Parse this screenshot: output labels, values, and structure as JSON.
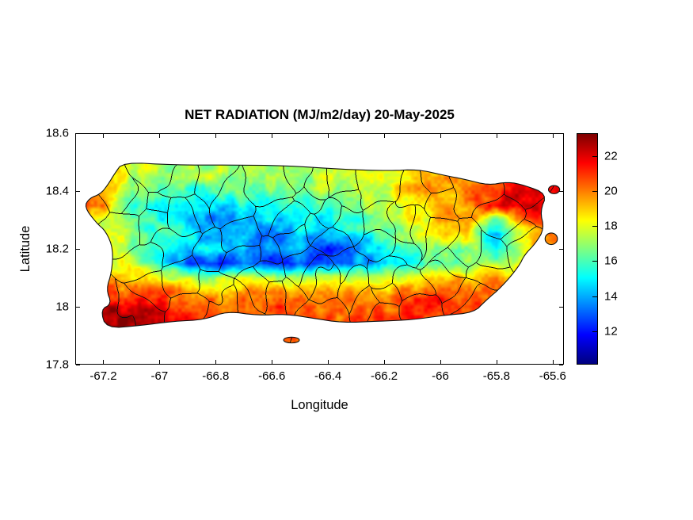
{
  "chart_data": {
    "type": "heatmap",
    "title": "NET RADIATION (MJ/m2/day) 20-May-2025",
    "units": "MJ/m2/day",
    "date": "20-May-2025",
    "region": "Puerto Rico",
    "xlabel": "Longitude",
    "ylabel": "Latitude",
    "xlim": [
      -67.3,
      -65.56
    ],
    "ylim": [
      17.8,
      18.6
    ],
    "x_ticks": [
      -67.2,
      -67,
      -66.8,
      -66.6,
      -66.4,
      -66.2,
      -66,
      -65.8,
      -65.6
    ],
    "y_ticks": [
      17.8,
      18,
      18.2,
      18.4,
      18.6
    ],
    "colormap": "jet",
    "clim": [
      10.1,
      23.3
    ],
    "colorbar_ticks": [
      12,
      14,
      16,
      18,
      20,
      22
    ],
    "overlay": "municipality boundaries (thin black lines)",
    "grid": {
      "lon": [
        -67.3,
        -67.2,
        -67.1,
        -67.0,
        -66.9,
        -66.8,
        -66.7,
        -66.6,
        -66.5,
        -66.4,
        -66.3,
        -66.2,
        -66.1,
        -66.0,
        -65.9,
        -65.8,
        -65.7,
        -65.6,
        -65.5
      ],
      "lat": [
        17.95,
        18.0,
        18.05,
        18.1,
        18.15,
        18.2,
        18.25,
        18.3,
        18.35,
        18.4,
        18.45,
        18.5
      ],
      "values": [
        [
          23,
          23,
          22.5,
          22.5,
          22,
          21,
          21,
          21,
          20.5,
          20.5,
          20.5,
          21,
          21.5,
          21,
          20.5,
          20,
          20,
          20,
          20
        ],
        [
          22.5,
          22.5,
          22,
          21.5,
          21,
          20.5,
          20.5,
          21,
          20.5,
          20,
          20,
          20.5,
          21,
          21.5,
          21,
          20.5,
          20,
          20,
          20
        ],
        [
          21,
          21,
          20.5,
          20.5,
          20,
          19.5,
          19.5,
          20,
          19.5,
          19.5,
          19.5,
          19.5,
          20,
          20.5,
          20.5,
          20,
          19.5,
          19.5,
          19.5
        ],
        [
          19.5,
          19.5,
          19,
          18.5,
          17.5,
          17,
          17.5,
          17.5,
          17.5,
          17.5,
          18,
          18,
          18.5,
          19,
          19,
          19.5,
          19.5,
          19.5,
          19.5
        ],
        [
          19,
          19,
          17.5,
          15.5,
          13,
          12.5,
          13,
          12.5,
          13,
          12.5,
          13.5,
          14.5,
          15.5,
          16.5,
          16.5,
          17.5,
          18.5,
          18.5,
          18.5
        ],
        [
          19,
          18.5,
          17,
          15.5,
          14.5,
          14.5,
          14,
          13.5,
          14,
          12.5,
          14,
          15,
          16,
          17.5,
          17,
          15.5,
          18,
          19,
          19
        ],
        [
          18.5,
          18,
          17,
          16,
          15,
          14.5,
          14,
          13,
          14.5,
          14.5,
          15,
          16,
          17.5,
          19,
          18.5,
          13.5,
          18.5,
          20,
          20
        ],
        [
          18,
          17.5,
          16.5,
          15.5,
          14,
          13.5,
          14.5,
          14.5,
          15,
          15.5,
          16,
          17,
          18,
          19,
          19.5,
          16,
          20,
          21,
          21
        ],
        [
          21,
          20,
          15.5,
          15,
          14.5,
          14.5,
          15.5,
          15,
          15.5,
          16,
          16.5,
          17.5,
          18.5,
          19.5,
          20,
          21.5,
          22,
          21.5,
          21
        ],
        [
          20.5,
          19.5,
          16.5,
          16,
          15.5,
          16.5,
          16.5,
          16.5,
          16.5,
          17,
          17.5,
          18,
          19,
          19.5,
          19.5,
          21.5,
          22.5,
          22,
          21.5
        ],
        [
          20,
          19.5,
          17.5,
          17,
          17,
          17.5,
          17,
          17,
          17.5,
          17.5,
          18,
          18.5,
          19,
          19.5,
          19,
          20.5,
          22,
          21.5,
          21
        ],
        [
          19.5,
          19,
          18,
          17.5,
          17,
          17.5,
          17,
          17,
          17.5,
          18,
          18,
          18.5,
          19,
          19.5,
          19,
          20,
          21,
          21,
          20.5
        ]
      ]
    },
    "coastline": [
      [
        -67.13,
        18.5
      ],
      [
        -66.95,
        18.49
      ],
      [
        -66.75,
        18.49
      ],
      [
        -66.55,
        18.488
      ],
      [
        -66.35,
        18.475
      ],
      [
        -66.18,
        18.47
      ],
      [
        -66.08,
        18.475
      ],
      [
        -65.99,
        18.455
      ],
      [
        -65.91,
        18.44
      ],
      [
        -65.83,
        18.42
      ],
      [
        -65.76,
        18.432
      ],
      [
        -65.7,
        18.42
      ],
      [
        -65.62,
        18.39
      ],
      [
        -65.645,
        18.33
      ],
      [
        -65.63,
        18.27
      ],
      [
        -65.66,
        18.22
      ],
      [
        -65.7,
        18.18
      ],
      [
        -65.72,
        18.14
      ],
      [
        -65.78,
        18.07
      ],
      [
        -65.84,
        18.02
      ],
      [
        -65.88,
        17.98
      ],
      [
        -65.99,
        17.97
      ],
      [
        -66.1,
        17.955
      ],
      [
        -66.22,
        17.95
      ],
      [
        -66.35,
        17.945
      ],
      [
        -66.45,
        17.96
      ],
      [
        -66.55,
        17.975
      ],
      [
        -66.65,
        17.97
      ],
      [
        -66.76,
        17.985
      ],
      [
        -66.84,
        17.955
      ],
      [
        -66.95,
        17.95
      ],
      [
        -67.07,
        17.935
      ],
      [
        -67.19,
        17.925
      ],
      [
        -67.21,
        17.99
      ],
      [
        -67.17,
        18.01
      ],
      [
        -67.19,
        18.06
      ],
      [
        -67.17,
        18.12
      ],
      [
        -67.165,
        18.2
      ],
      [
        -67.19,
        18.26
      ],
      [
        -67.225,
        18.29
      ],
      [
        -67.268,
        18.345
      ],
      [
        -67.25,
        18.375
      ],
      [
        -67.21,
        18.39
      ],
      [
        -67.185,
        18.42
      ],
      [
        -67.16,
        18.46
      ]
    ],
    "islets": [
      {
        "lon": -66.53,
        "lat": 17.885,
        "rx": 0.028,
        "ry": 0.01
      },
      {
        "lon": -65.595,
        "lat": 18.405,
        "rx": 0.02,
        "ry": 0.014
      },
      {
        "lon": -65.605,
        "lat": 18.235,
        "rx": 0.022,
        "ry": 0.02
      }
    ]
  }
}
